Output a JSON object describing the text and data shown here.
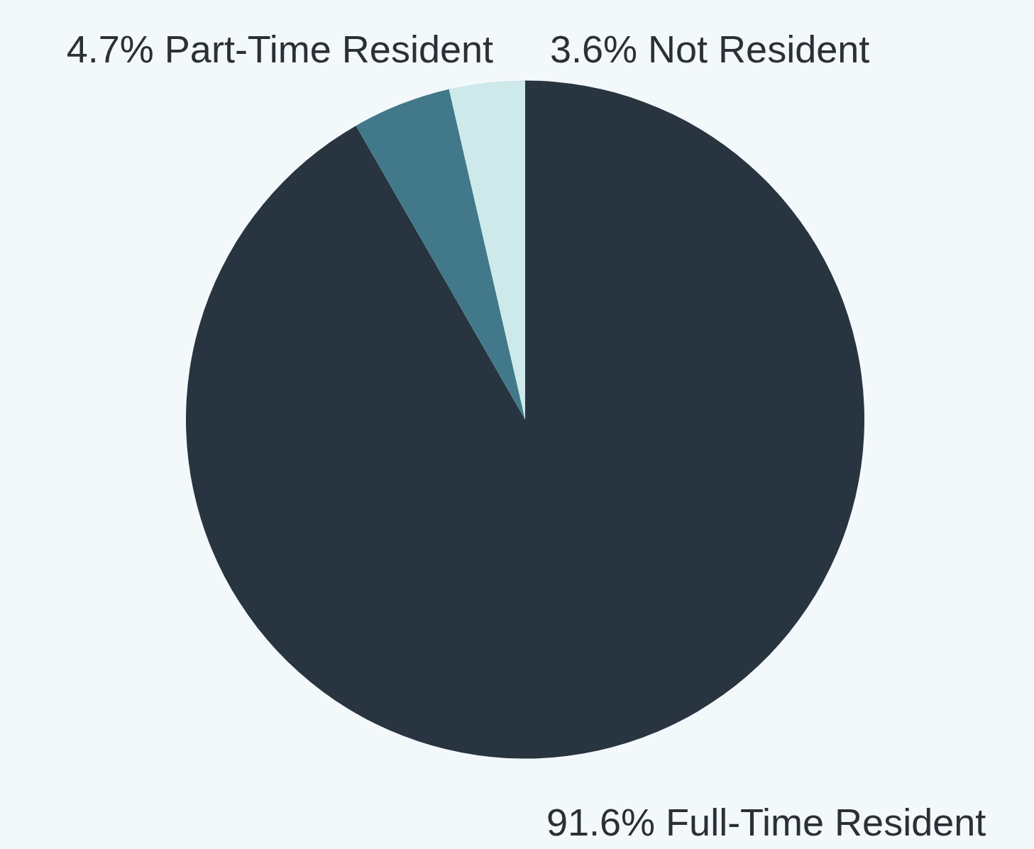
{
  "chart_data": {
    "type": "pie",
    "categories": [
      "Full-Time Resident",
      "Part-Time Resident",
      "Not Resident"
    ],
    "values": [
      91.6,
      4.7,
      3.6
    ],
    "colors": [
      "#283540",
      "#41798a",
      "#cde9ea"
    ],
    "value_labels": [
      "91.6%",
      "4.7%",
      "3.6%"
    ]
  }
}
